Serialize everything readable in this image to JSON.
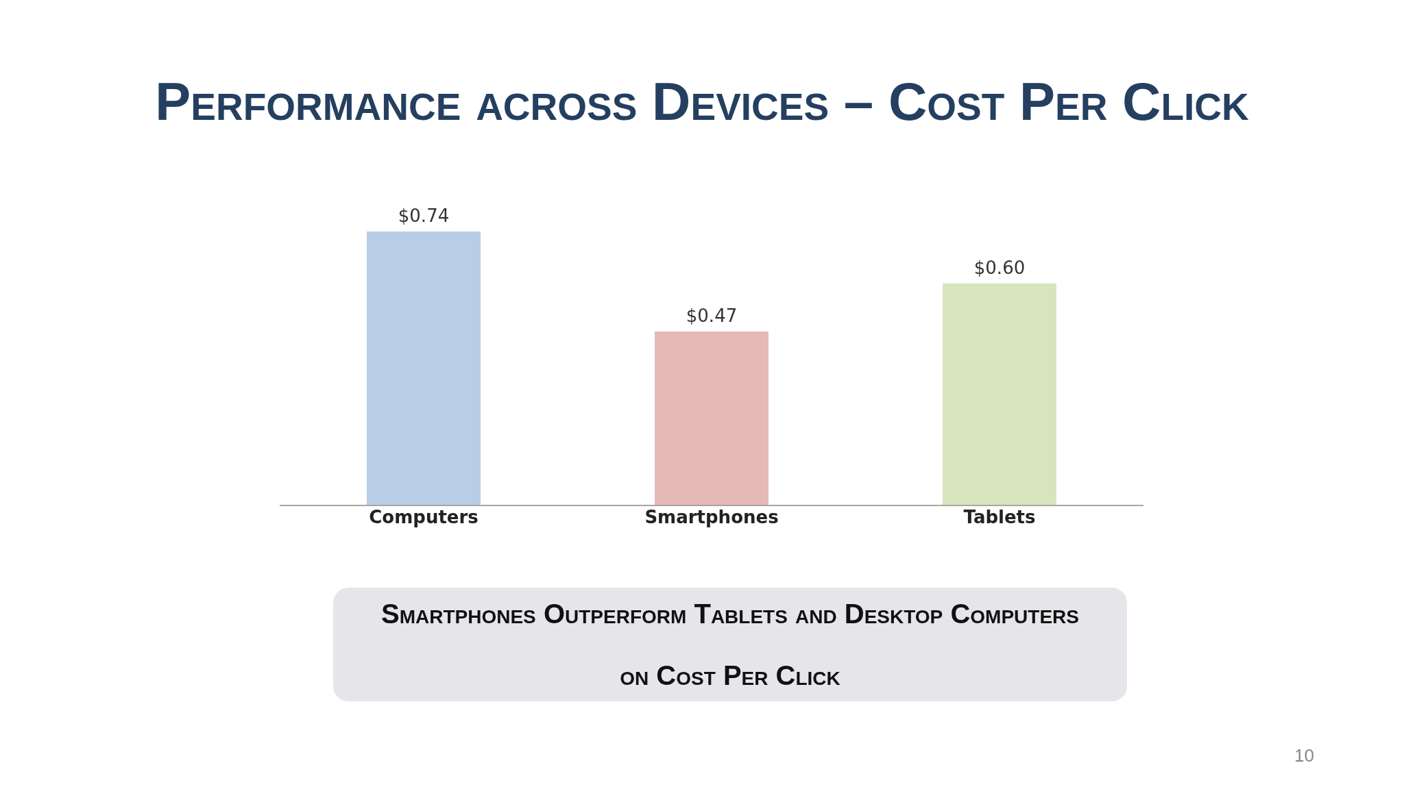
{
  "chart_data": {
    "type": "bar",
    "title": "Performance across Devices – Cost Per Click",
    "categories": [
      "Computers",
      "Smartphones",
      "Tablets"
    ],
    "values": [
      0.74,
      0.47,
      0.6
    ],
    "colors": [
      "#b9cde6",
      "#e6b8b7",
      "#d8e4bc"
    ],
    "value_labels": [
      "$0.74",
      "$0.47",
      "$0.60"
    ],
    "annotations": [
      "Smartphones Outperform Tablets and Desktop Computers on Cost Per Click",
      "10"
    ]
  }
}
